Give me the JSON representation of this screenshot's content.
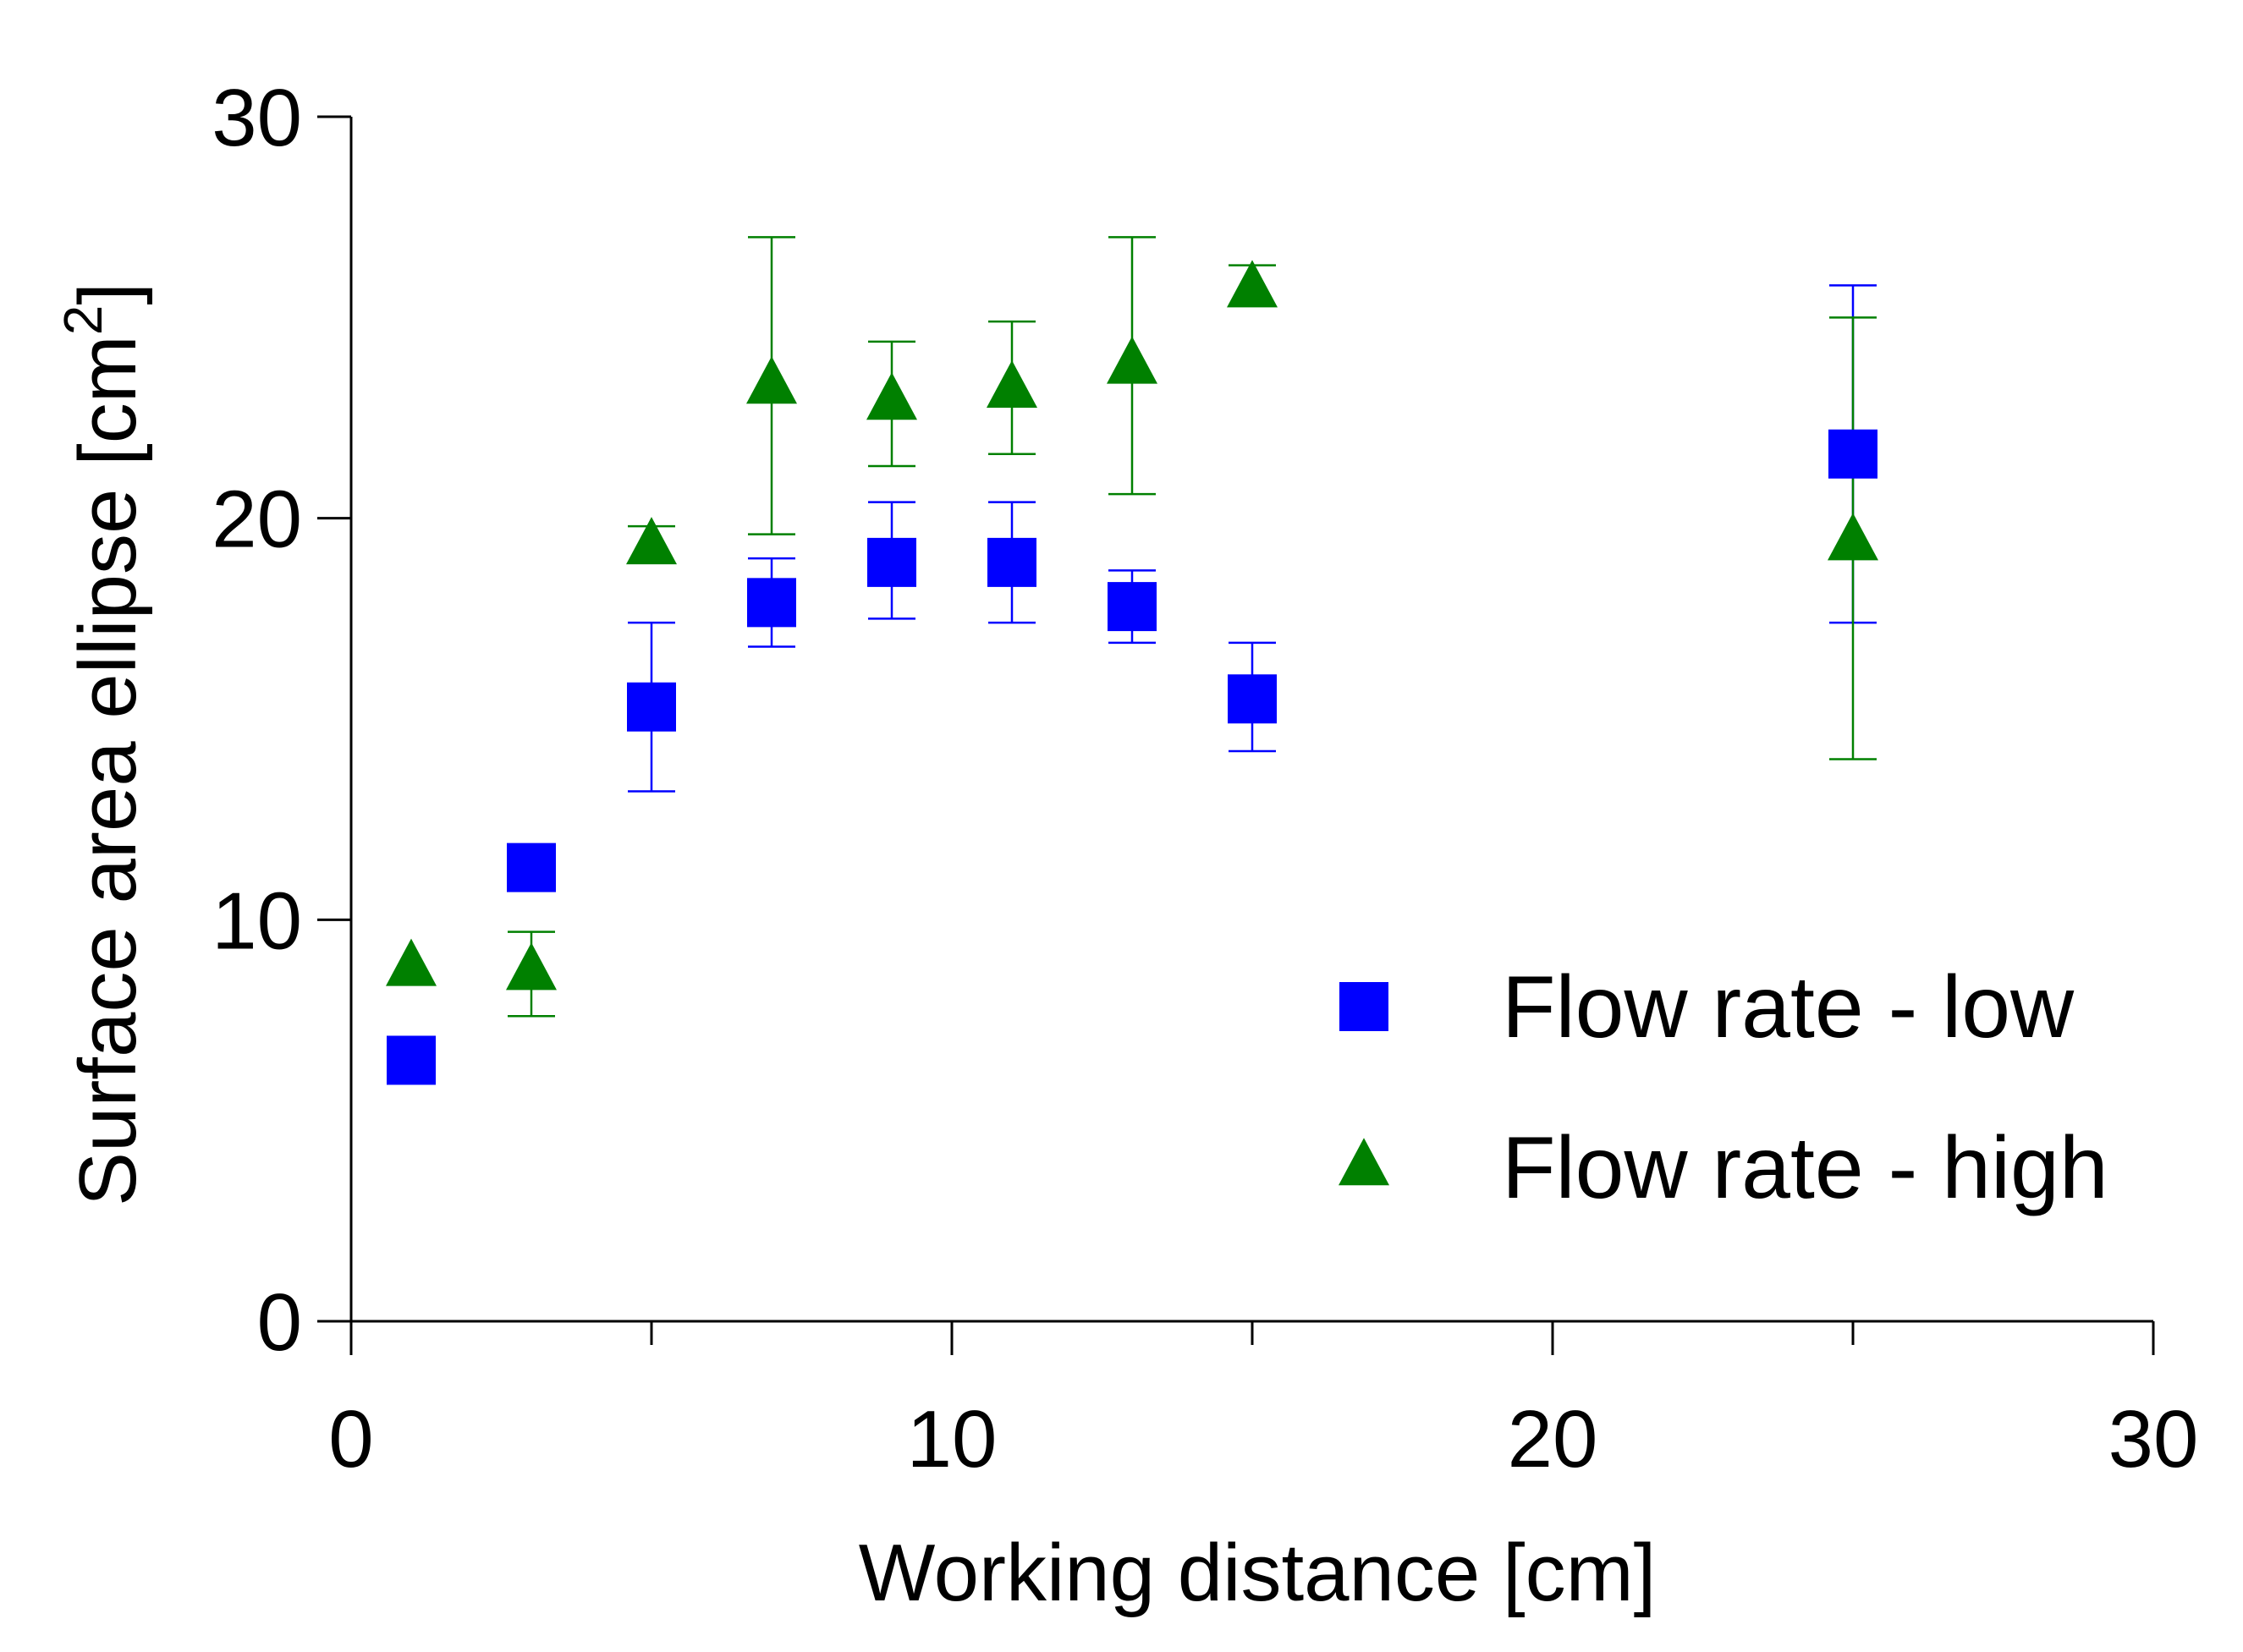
{
  "chart_data": {
    "type": "scatter",
    "title": "",
    "xlabel": "Working distance [cm]",
    "ylabel": "Surface area ellipse [cm",
    "ylabel_superscript": "2",
    "ylabel_suffix": "]",
    "xlim": [
      0,
      30
    ],
    "ylim": [
      0,
      30
    ],
    "x_ticks": [
      0,
      10,
      20,
      30
    ],
    "x_tick_labels": [
      "0",
      "10",
      "20",
      "30"
    ],
    "x_minor_ticks": [
      5,
      15,
      25
    ],
    "y_ticks": [
      0,
      10,
      20,
      30
    ],
    "y_tick_labels": [
      "0",
      "10",
      "20",
      "30"
    ],
    "grid": false,
    "legend_position": "bottom-right",
    "series": [
      {
        "name": "Flow rate - low",
        "marker": "square",
        "color": "#0000ff",
        "x": [
          1,
          3,
          5,
          7,
          9,
          11,
          13,
          15,
          25
        ],
        "y": [
          6.5,
          11.3,
          15.3,
          17.9,
          18.9,
          18.9,
          17.8,
          15.5,
          21.6
        ],
        "err_low": [
          null,
          null,
          2.1,
          1.1,
          1.4,
          1.5,
          0.9,
          1.3,
          4.2
        ],
        "err_high": [
          null,
          null,
          2.1,
          1.1,
          1.5,
          1.5,
          0.9,
          1.4,
          4.2
        ]
      },
      {
        "name": "Flow rate - high",
        "marker": "triangle",
        "color": "#008000",
        "x": [
          1,
          3,
          5,
          7,
          9,
          11,
          13,
          15,
          25
        ],
        "y": [
          8.8,
          8.7,
          19.3,
          23.3,
          22.9,
          23.2,
          23.8,
          25.7,
          19.4
        ],
        "err_low": [
          null,
          1.1,
          null,
          3.7,
          1.6,
          1.6,
          3.2,
          null,
          5.4
        ],
        "err_high": [
          null,
          1.0,
          0.5,
          3.7,
          1.5,
          1.7,
          3.2,
          0.6,
          5.6
        ]
      }
    ]
  }
}
